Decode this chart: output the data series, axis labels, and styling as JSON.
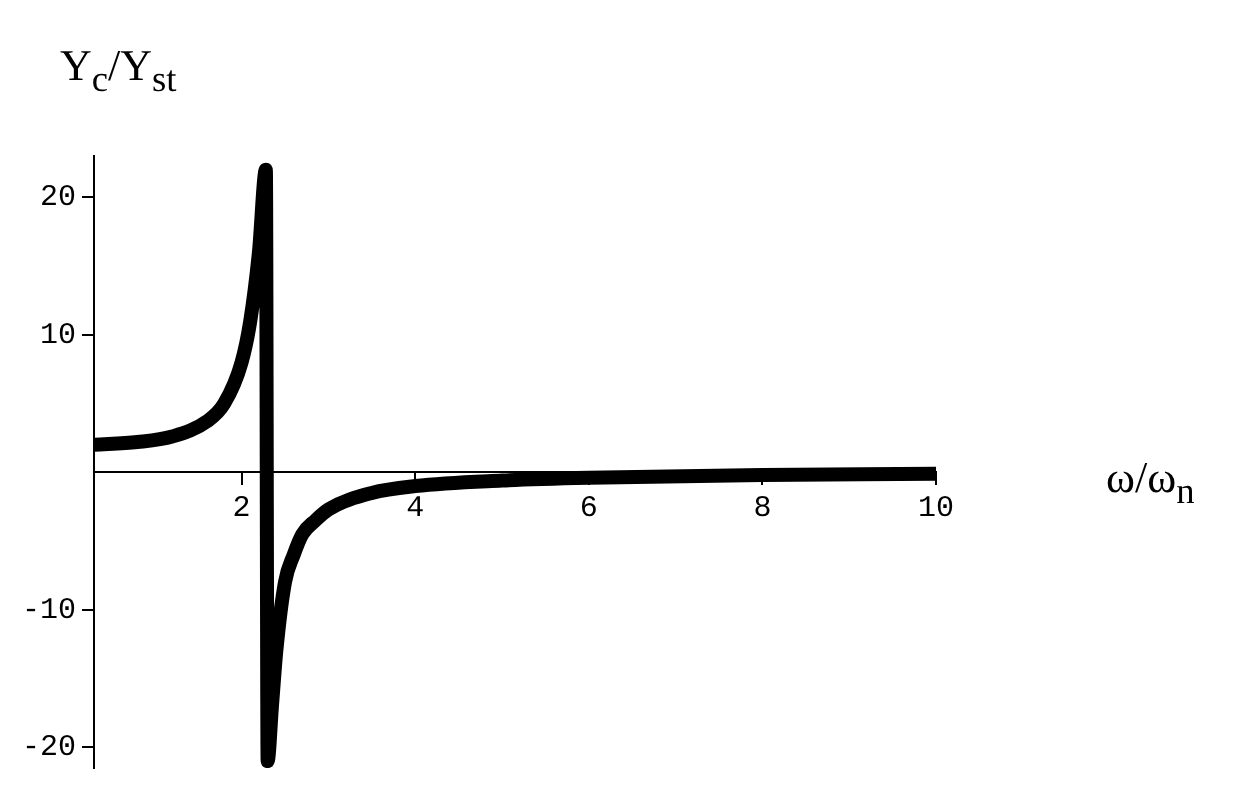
{
  "chart_data": {
    "type": "line",
    "xlabel": "ω/ω$_{n}$",
    "ylabel": "Y$_{c}$/Y$_{st}$",
    "x": [
      0.3,
      0.8,
      1.2,
      1.6,
      1.8,
      2.0,
      2.1,
      2.2,
      2.28,
      2.3,
      2.35,
      2.4,
      2.5,
      2.6,
      2.7,
      2.85,
      3.0,
      3.5,
      4.0,
      5.0,
      6.0,
      8.0,
      10.0
    ],
    "series": [
      {
        "color": "#000000",
        "values": [
          2.0,
          2.2,
          2.6,
          3.7,
          5.0,
          8.0,
          11,
          16,
          22,
          -21,
          -17,
          -13,
          -8,
          -6,
          -4.5,
          -3.5,
          -2.7,
          -1.5,
          -1.0,
          -0.6,
          -0.4,
          -0.2,
          -0.1
        ]
      }
    ],
    "xlim": [
      0.3,
      10
    ],
    "xticks": [
      2,
      4,
      6,
      8,
      10
    ],
    "ylim": [
      -21.5,
      23
    ],
    "yticks": [
      -20,
      -10,
      10,
      20
    ],
    "grid": false,
    "legend": false,
    "marker": "none",
    "line_style": "solid"
  }
}
